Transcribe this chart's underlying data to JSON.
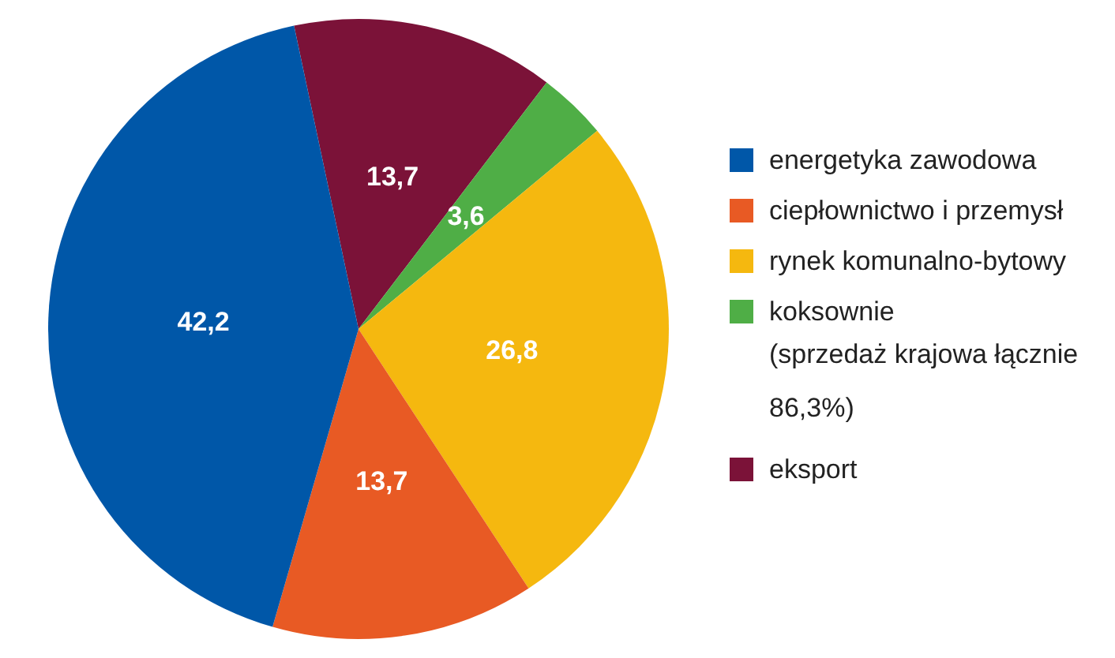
{
  "chart_data": {
    "type": "pie",
    "categories": [
      "energetyka zawodowa",
      "ciepłownictwo i przemysł",
      "rynek komunalno-bytowy",
      "koksownie",
      "eksport"
    ],
    "values": [
      42.2,
      13.7,
      26.8,
      3.6,
      13.7
    ],
    "value_labels": [
      "42,2",
      "13,7",
      "26,8",
      "3,6",
      "13,7"
    ],
    "colors": [
      "#0057a8",
      "#e85a24",
      "#f5b80f",
      "#4fae46",
      "#7b1238"
    ],
    "legend": "right",
    "annotations": [
      "(sprzedaż krajowa łącznie 86,3%)"
    ]
  }
}
